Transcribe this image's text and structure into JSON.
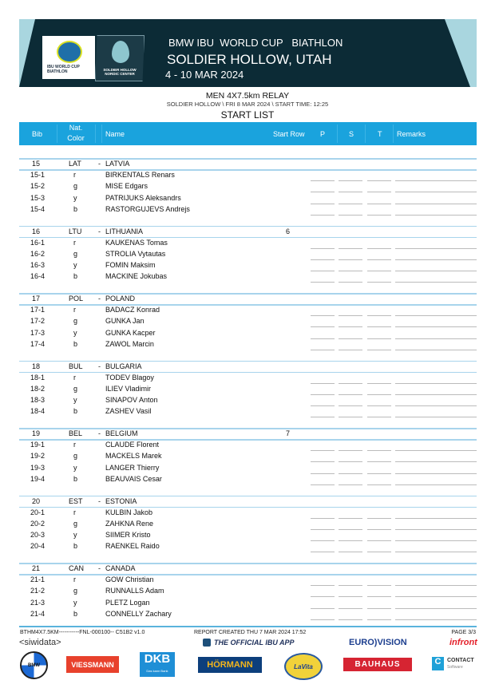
{
  "header": {
    "series": "BMW IBU  WORLD CUP   BIATHLON",
    "venue": "SOLDIER HOLLOW, UTAH",
    "dates": "4 - 10 MAR 2024",
    "logo_ibu_text": "IBU WORLD CUP BIATHLON",
    "logo_venue_text": "SOLDIER HOLLOW NORDIC CENTER"
  },
  "event": {
    "title": "MEN 4X7.5km RELAY",
    "subtitle": "SOLDIER HOLLOW \\ FRI 8 MAR 2024 \\ START TIME: 12:25",
    "list_title": "START LIST"
  },
  "columns": {
    "bib": "Bib",
    "nat_line1": "Nat.",
    "nat_line2": "Color",
    "name": "Name",
    "start_row": "Start Row",
    "p": "P",
    "s": "S",
    "t": "T",
    "remarks": "Remarks"
  },
  "teams": [
    {
      "bib": "15",
      "nat": "LAT",
      "dash": "-",
      "name": "LATVIA",
      "start_row": "",
      "athletes": [
        {
          "bib": "15-1",
          "color": "r",
          "name": "BIRKENTALS Renars"
        },
        {
          "bib": "15-2",
          "color": "g",
          "name": "MISE Edgars"
        },
        {
          "bib": "15-3",
          "color": "y",
          "name": "PATRIJUKS Aleksandrs"
        },
        {
          "bib": "15-4",
          "color": "b",
          "name": "RASTORGUJEVS Andrejs"
        }
      ]
    },
    {
      "bib": "16",
      "nat": "LTU",
      "dash": "-",
      "name": "LITHUANIA",
      "start_row": "6",
      "athletes": [
        {
          "bib": "16-1",
          "color": "r",
          "name": "KAUKENAS Tomas"
        },
        {
          "bib": "16-2",
          "color": "g",
          "name": "STROLIA Vytautas"
        },
        {
          "bib": "16-3",
          "color": "y",
          "name": "FOMIN Maksim"
        },
        {
          "bib": "16-4",
          "color": "b",
          "name": "MACKINE Jokubas"
        }
      ]
    },
    {
      "bib": "17",
      "nat": "POL",
      "dash": "-",
      "name": "POLAND",
      "start_row": "",
      "athletes": [
        {
          "bib": "17-1",
          "color": "r",
          "name": "BADACZ Konrad"
        },
        {
          "bib": "17-2",
          "color": "g",
          "name": "GUNKA Jan"
        },
        {
          "bib": "17-3",
          "color": "y",
          "name": "GUNKA Kacper"
        },
        {
          "bib": "17-4",
          "color": "b",
          "name": "ZAWOL Marcin"
        }
      ]
    },
    {
      "bib": "18",
      "nat": "BUL",
      "dash": "-",
      "name": "BULGARIA",
      "start_row": "",
      "athletes": [
        {
          "bib": "18-1",
          "color": "r",
          "name": "TODEV Blagoy"
        },
        {
          "bib": "18-2",
          "color": "g",
          "name": "ILIEV Vladimir"
        },
        {
          "bib": "18-3",
          "color": "y",
          "name": "SINAPOV Anton"
        },
        {
          "bib": "18-4",
          "color": "b",
          "name": "ZASHEV Vasil"
        }
      ]
    },
    {
      "bib": "19",
      "nat": "BEL",
      "dash": "-",
      "name": "BELGIUM",
      "start_row": "7",
      "athletes": [
        {
          "bib": "19-1",
          "color": "r",
          "name": "CLAUDE Florent"
        },
        {
          "bib": "19-2",
          "color": "g",
          "name": "MACKELS Marek"
        },
        {
          "bib": "19-3",
          "color": "y",
          "name": "LANGER Thierry"
        },
        {
          "bib": "19-4",
          "color": "b",
          "name": "BEAUVAIS Cesar"
        }
      ]
    },
    {
      "bib": "20",
      "nat": "EST",
      "dash": "-",
      "name": "ESTONIA",
      "start_row": "",
      "athletes": [
        {
          "bib": "20-1",
          "color": "r",
          "name": "KULBIN Jakob"
        },
        {
          "bib": "20-2",
          "color": "g",
          "name": "ZAHKNA Rene"
        },
        {
          "bib": "20-3",
          "color": "y",
          "name": "SIIMER Kristo"
        },
        {
          "bib": "20-4",
          "color": "b",
          "name": "RAENKEL Raido"
        }
      ]
    },
    {
      "bib": "21",
      "nat": "CAN",
      "dash": "-",
      "name": "CANADA",
      "start_row": "",
      "athletes": [
        {
          "bib": "21-1",
          "color": "r",
          "name": "GOW Christian"
        },
        {
          "bib": "21-2",
          "color": "g",
          "name": "RUNNALLS Adam"
        },
        {
          "bib": "21-3",
          "color": "y",
          "name": "PLETZ Logan"
        },
        {
          "bib": "21-4",
          "color": "b",
          "name": "CONNELLY Zachary"
        }
      ]
    }
  ],
  "footer": {
    "code": "BTHM4X7.5KM-----------FNL-000100-- C51B2 v1.0",
    "report": "REPORT CREATED THU 7 MAR 2024 17:52",
    "page": "PAGE 3/3",
    "timing": "<siwidata>",
    "app": "THE OFFICIAL IBU APP",
    "eurovision": "EURO)VISION",
    "infront": "infront",
    "sponsors": [
      "BMW",
      "VIESSMANN",
      "DKB",
      "Das kann Bank",
      "HÖRMANN",
      "LaVita",
      "BAUHAUS",
      "CONTACT",
      "Software"
    ]
  },
  "colors": {
    "header_bar": "#1aa3dd",
    "banner": "#0c2b36",
    "rule": "#a8d4ec"
  }
}
